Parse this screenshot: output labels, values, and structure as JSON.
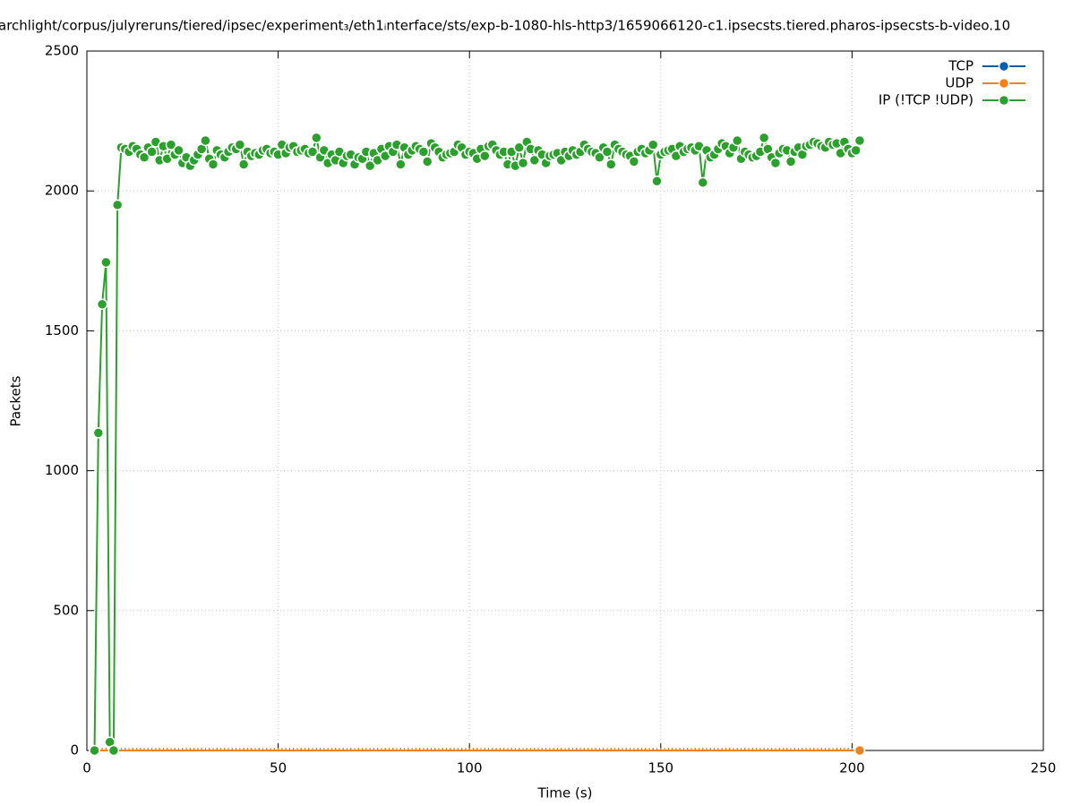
{
  "chart_data": {
    "type": "line",
    "title": "archlight/corpus/julyreruns/tiered/ipsec/experiment₃/eth1ᵢnterface/sts/exp-b-1080-hls-http3/1659066120-c1.ipsecsts.tiered.pharos-ipsecsts-b-video.10",
    "xlabel": "Time (s)",
    "ylabel": "Packets",
    "xlim": [
      0,
      250
    ],
    "xticks": [
      0,
      50,
      100,
      150,
      200,
      250
    ],
    "ylim": [
      0,
      2500
    ],
    "yticks": [
      0,
      500,
      1000,
      1500,
      2000,
      2500
    ],
    "grid": true,
    "legend": "top-right",
    "x": [
      2,
      3,
      4,
      5,
      6,
      7,
      8,
      9,
      10,
      11,
      12,
      13,
      14,
      15,
      16,
      17,
      18,
      19,
      20,
      21,
      22,
      23,
      24,
      25,
      26,
      27,
      28,
      29,
      30,
      31,
      32,
      33,
      34,
      35,
      36,
      37,
      38,
      39,
      40,
      41,
      42,
      43,
      44,
      45,
      46,
      47,
      48,
      49,
      50,
      51,
      52,
      53,
      54,
      55,
      56,
      57,
      58,
      59,
      60,
      61,
      62,
      63,
      64,
      65,
      66,
      67,
      68,
      69,
      70,
      71,
      72,
      73,
      74,
      75,
      76,
      77,
      78,
      79,
      80,
      81,
      82,
      83,
      84,
      85,
      86,
      87,
      88,
      89,
      90,
      91,
      92,
      93,
      94,
      95,
      96,
      97,
      98,
      99,
      100,
      101,
      102,
      103,
      104,
      105,
      106,
      107,
      108,
      109,
      110,
      111,
      112,
      113,
      114,
      115,
      116,
      117,
      118,
      119,
      120,
      121,
      122,
      123,
      124,
      125,
      126,
      127,
      128,
      129,
      130,
      131,
      132,
      133,
      134,
      135,
      136,
      137,
      138,
      139,
      140,
      141,
      142,
      143,
      144,
      145,
      146,
      147,
      148,
      149,
      150,
      151,
      152,
      153,
      154,
      155,
      156,
      157,
      158,
      159,
      160,
      161,
      162,
      163,
      164,
      165,
      166,
      167,
      168,
      169,
      170,
      171,
      172,
      173,
      174,
      175,
      176,
      177,
      178,
      179,
      180,
      181,
      182,
      183,
      184,
      185,
      186,
      187,
      188,
      189,
      190,
      191,
      192,
      193,
      194,
      195,
      196,
      197,
      198,
      199,
      200,
      201,
      202
    ],
    "series": [
      {
        "name": "TCP",
        "color": "#0060ad",
        "values": [
          0,
          0,
          0,
          0,
          0,
          0,
          0,
          0,
          0,
          0,
          0,
          0,
          0,
          0,
          0,
          0,
          0,
          0,
          0,
          0,
          0,
          0,
          0,
          0,
          0,
          0,
          0,
          0,
          0,
          0,
          0,
          0,
          0,
          0,
          0,
          0,
          0,
          0,
          0,
          0,
          0,
          0,
          0,
          0,
          0,
          0,
          0,
          0,
          0,
          0,
          0,
          0,
          0,
          0,
          0,
          0,
          0,
          0,
          0,
          0,
          0,
          0,
          0,
          0,
          0,
          0,
          0,
          0,
          0,
          0,
          0,
          0,
          0,
          0,
          0,
          0,
          0,
          0,
          0,
          0,
          0,
          0,
          0,
          0,
          0,
          0,
          0,
          0,
          0,
          0,
          0,
          0,
          0,
          0,
          0,
          0,
          0,
          0,
          0,
          0,
          0,
          0,
          0,
          0,
          0,
          0,
          0,
          0,
          0,
          0,
          0,
          0,
          0,
          0,
          0,
          0,
          0,
          0,
          0,
          0,
          0,
          0,
          0,
          0,
          0,
          0,
          0,
          0,
          0,
          0,
          0,
          0,
          0,
          0,
          0,
          0,
          0,
          0,
          0,
          0,
          0,
          0,
          0,
          0,
          0,
          0,
          0,
          0,
          0,
          0,
          0,
          0,
          0,
          0,
          0,
          0,
          0,
          0,
          0,
          0,
          0,
          0,
          0,
          0,
          0,
          0,
          0,
          0,
          0,
          0,
          0,
          0,
          0,
          0,
          0,
          0,
          0,
          0,
          0,
          0,
          0,
          0,
          0,
          0,
          0,
          0,
          0,
          0,
          0,
          0,
          0,
          0,
          0,
          0,
          0,
          0,
          0,
          0,
          0,
          0,
          0
        ]
      },
      {
        "name": "UDP",
        "color": "#f0821e",
        "values": [
          0,
          0,
          0,
          0,
          0,
          0,
          0,
          0,
          0,
          0,
          0,
          0,
          0,
          0,
          0,
          0,
          0,
          0,
          0,
          0,
          0,
          0,
          0,
          0,
          0,
          0,
          0,
          0,
          0,
          0,
          0,
          0,
          0,
          0,
          0,
          0,
          0,
          0,
          0,
          0,
          0,
          0,
          0,
          0,
          0,
          0,
          0,
          0,
          0,
          0,
          0,
          0,
          0,
          0,
          0,
          0,
          0,
          0,
          0,
          0,
          0,
          0,
          0,
          0,
          0,
          0,
          0,
          0,
          0,
          0,
          0,
          0,
          0,
          0,
          0,
          0,
          0,
          0,
          0,
          0,
          0,
          0,
          0,
          0,
          0,
          0,
          0,
          0,
          0,
          0,
          0,
          0,
          0,
          0,
          0,
          0,
          0,
          0,
          0,
          0,
          0,
          0,
          0,
          0,
          0,
          0,
          0,
          0,
          0,
          0,
          0,
          0,
          0,
          0,
          0,
          0,
          0,
          0,
          0,
          0,
          0,
          0,
          0,
          0,
          0,
          0,
          0,
          0,
          0,
          0,
          0,
          0,
          0,
          0,
          0,
          0,
          0,
          0,
          0,
          0,
          0,
          0,
          0,
          0,
          0,
          0,
          0,
          0,
          0,
          0,
          0,
          0,
          0,
          0,
          0,
          0,
          0,
          0,
          0,
          0,
          0,
          0,
          0,
          0,
          0,
          0,
          0,
          0,
          0,
          0,
          0,
          0,
          0,
          0,
          0,
          0,
          0,
          0,
          0,
          0,
          0,
          0,
          0,
          0,
          0,
          0,
          0,
          0,
          0,
          0,
          0,
          0,
          0,
          0,
          0,
          0,
          0,
          0,
          0,
          0,
          0
        ]
      },
      {
        "name": "IP (!TCP  !UDP)",
        "color": "#2ca02c",
        "values": [
          0,
          1135,
          1595,
          1745,
          30,
          0,
          1950,
          2155,
          2150,
          2140,
          2160,
          2150,
          2130,
          2120,
          2155,
          2140,
          2175,
          2110,
          2160,
          2115,
          2165,
          2130,
          2145,
          2100,
          2120,
          2090,
          2110,
          2130,
          2150,
          2180,
          2115,
          2095,
          2145,
          2130,
          2120,
          2140,
          2155,
          2150,
          2165,
          2095,
          2140,
          2125,
          2135,
          2130,
          2145,
          2150,
          2135,
          2140,
          2130,
          2165,
          2135,
          2155,
          2160,
          2140,
          2145,
          2150,
          2135,
          2140,
          2190,
          2120,
          2145,
          2100,
          2130,
          2110,
          2140,
          2100,
          2125,
          2130,
          2095,
          2120,
          2115,
          2140,
          2090,
          2135,
          2110,
          2150,
          2125,
          2160,
          2140,
          2165,
          2095,
          2155,
          2130,
          2145,
          2160,
          2150,
          2140,
          2105,
          2170,
          2155,
          2140,
          2120,
          2130,
          2135,
          2140,
          2165,
          2155,
          2130,
          2140,
          2135,
          2115,
          2150,
          2125,
          2160,
          2165,
          2145,
          2130,
          2140,
          2095,
          2140,
          2090,
          2155,
          2100,
          2175,
          2150,
          2110,
          2145,
          2130,
          2100,
          2125,
          2130,
          2135,
          2110,
          2140,
          2125,
          2145,
          2130,
          2140,
          2165,
          2150,
          2140,
          2135,
          2120,
          2155,
          2140,
          2095,
          2165,
          2150,
          2140,
          2130,
          2125,
          2105,
          2140,
          2150,
          2135,
          2145,
          2165,
          2035,
          2130,
          2140,
          2145,
          2150,
          2125,
          2160,
          2140,
          2150,
          2155,
          2145,
          2160,
          2030,
          2145,
          2120,
          2130,
          2150,
          2170,
          2160,
          2135,
          2155,
          2180,
          2115,
          2140,
          2130,
          2120,
          2125,
          2140,
          2190,
          2150,
          2120,
          2100,
          2135,
          2150,
          2145,
          2105,
          2140,
          2155,
          2130,
          2160,
          2165,
          2175,
          2170,
          2160,
          2155,
          2175,
          2165,
          2170,
          2135,
          2175,
          2150,
          2135,
          2145,
          2180
        ]
      }
    ]
  }
}
